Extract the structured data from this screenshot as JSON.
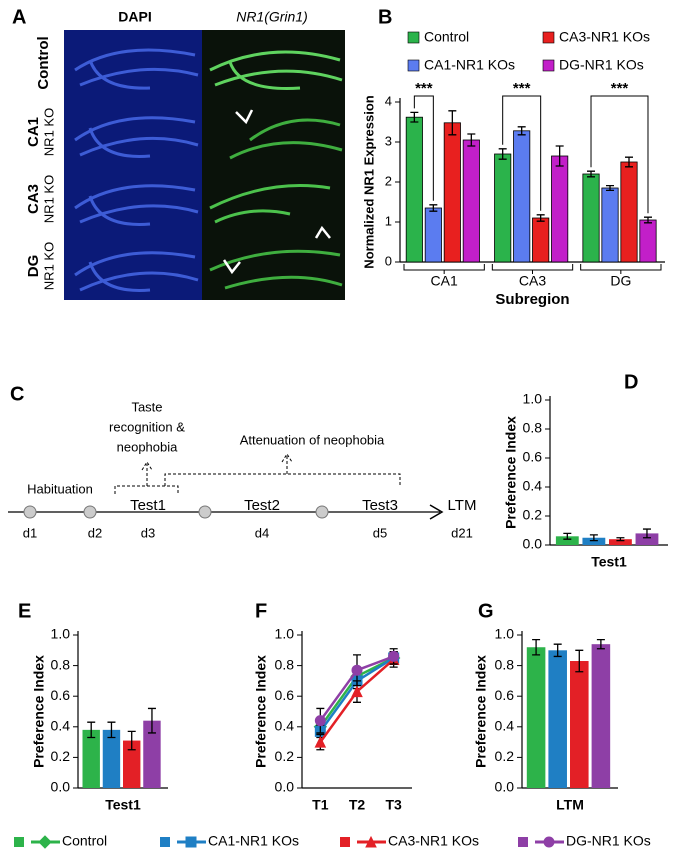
{
  "image_panel": {
    "label": "A",
    "columns": [
      "DAPI",
      "NR1(Grin1)"
    ],
    "rows": [
      {
        "name": "Control"
      },
      {
        "name": "CA1",
        "subname": "NR1 KO"
      },
      {
        "name": "CA3",
        "subname": "NR1 KO"
      },
      {
        "name": "DG",
        "subname": "NR1 KO"
      }
    ]
  },
  "timeline": {
    "label": "C",
    "note_test1": [
      "Taste",
      "recognition &",
      "neophobia"
    ],
    "note_later": "Attenuation of neophobia",
    "phases": [
      "Habituation",
      "Test1",
      "Test2",
      "Test3",
      "LTM"
    ],
    "days": [
      "d1",
      "d2",
      "d3",
      "d4",
      "d5",
      "d21"
    ]
  },
  "chart_data": [
    {
      "type": "bar",
      "label": "B",
      "ylabel": "Normalized NR1 Expression",
      "xlabel": "Subregion",
      "categories": [
        "CA1",
        "CA3",
        "DG"
      ],
      "ylim": [
        0,
        4
      ],
      "yticks": [
        0,
        1,
        2,
        3,
        4
      ],
      "legend": "top",
      "annotations": [
        "***",
        "***",
        "***"
      ],
      "series": [
        {
          "name": "Control",
          "color": "#2bb34b",
          "values": [
            3.62,
            2.7,
            2.2
          ],
          "errors": [
            0.12,
            0.13,
            0.07
          ]
        },
        {
          "name": "CA1-NR1 KOs",
          "color": "#5b7cf0",
          "values": [
            1.35,
            3.28,
            1.85
          ],
          "errors": [
            0.08,
            0.1,
            0.06
          ]
        },
        {
          "name": "CA3-NR1 KOs",
          "color": "#e8201f",
          "values": [
            3.48,
            1.1,
            2.5
          ],
          "errors": [
            0.3,
            0.08,
            0.12
          ]
        },
        {
          "name": "DG-NR1 KOs",
          "color": "#c21fc9",
          "values": [
            3.05,
            2.65,
            1.05
          ],
          "errors": [
            0.15,
            0.25,
            0.07
          ]
        }
      ]
    },
    {
      "type": "bar",
      "label": "D",
      "ylabel": "Preference Index",
      "categories": [
        "Test1"
      ],
      "ylim": [
        0,
        1
      ],
      "yticks": [
        {
          "value": 0,
          "label": "0.0"
        },
        0.2,
        0.4,
        0.6,
        0.8,
        {
          "value": 1,
          "label": "1.0"
        }
      ],
      "series": [
        {
          "color": "#2db34a",
          "values": [
            0.06
          ],
          "errors": [
            0.02
          ]
        },
        {
          "color": "#1f7fc4",
          "values": [
            0.05
          ],
          "errors": [
            0.02
          ]
        },
        {
          "color": "#e32026",
          "values": [
            0.04
          ],
          "errors": [
            0.01
          ]
        },
        {
          "color": "#8e3fa6",
          "values": [
            0.08
          ],
          "errors": [
            0.03
          ]
        }
      ]
    },
    {
      "type": "bar",
      "label": "E",
      "ylabel": "Preference Index",
      "categories": [
        "Test1"
      ],
      "ylim": [
        0,
        1
      ],
      "yticks": [
        {
          "value": 0,
          "label": "0.0"
        },
        0.2,
        0.4,
        0.6,
        0.8,
        {
          "value": 1,
          "label": "1.0"
        }
      ],
      "series": [
        {
          "color": "#2db34a",
          "values": [
            0.38
          ],
          "errors": [
            0.05
          ]
        },
        {
          "color": "#1f7fc4",
          "values": [
            0.38
          ],
          "errors": [
            0.05
          ]
        },
        {
          "color": "#e32026",
          "values": [
            0.31
          ],
          "errors": [
            0.06
          ]
        },
        {
          "color": "#8e3fa6",
          "values": [
            0.44
          ],
          "errors": [
            0.08
          ]
        }
      ]
    },
    {
      "type": "line",
      "label": "F",
      "ylabel": "Preference Index",
      "categories": [
        "T1",
        "T2",
        "T3"
      ],
      "ylim": [
        0,
        1
      ],
      "yticks": [
        {
          "value": 0,
          "label": "0.0"
        },
        0.2,
        0.4,
        0.6,
        0.8,
        {
          "value": 1,
          "label": "1.0"
        }
      ],
      "legend": "bottom",
      "series": [
        {
          "name": "Control",
          "color": "#2db34a",
          "marker": "diamond",
          "values": [
            0.4,
            0.73,
            0.85
          ],
          "errors": [
            0.04,
            0.05,
            0.04
          ]
        },
        {
          "name": "CA1-NR1 KOs",
          "color": "#1f7fc4",
          "marker": "square",
          "values": [
            0.37,
            0.7,
            0.85
          ],
          "errors": [
            0.04,
            0.05,
            0.04
          ]
        },
        {
          "name": "CA3-NR1 KOs",
          "color": "#e32026",
          "marker": "triangle",
          "values": [
            0.3,
            0.63,
            0.84
          ],
          "errors": [
            0.05,
            0.07,
            0.05
          ]
        },
        {
          "name": "DG-NR1 KOs",
          "color": "#8e3fa6",
          "marker": "circle",
          "values": [
            0.44,
            0.77,
            0.86
          ],
          "errors": [
            0.08,
            0.1,
            0.05
          ]
        }
      ]
    },
    {
      "type": "bar",
      "label": "G",
      "ylabel": "Preference Index",
      "categories": [
        "LTM"
      ],
      "ylim": [
        0,
        1
      ],
      "yticks": [
        {
          "value": 0,
          "label": "0.0"
        },
        0.2,
        0.4,
        0.6,
        0.8,
        {
          "value": 1,
          "label": "1.0"
        }
      ],
      "series": [
        {
          "color": "#2db34a",
          "values": [
            0.92
          ],
          "errors": [
            0.05
          ]
        },
        {
          "color": "#1f7fc4",
          "values": [
            0.9
          ],
          "errors": [
            0.04
          ]
        },
        {
          "color": "#e32026",
          "values": [
            0.83
          ],
          "errors": [
            0.07
          ]
        },
        {
          "color": "#8e3fa6",
          "values": [
            0.94
          ],
          "errors": [
            0.03
          ]
        }
      ]
    }
  ]
}
